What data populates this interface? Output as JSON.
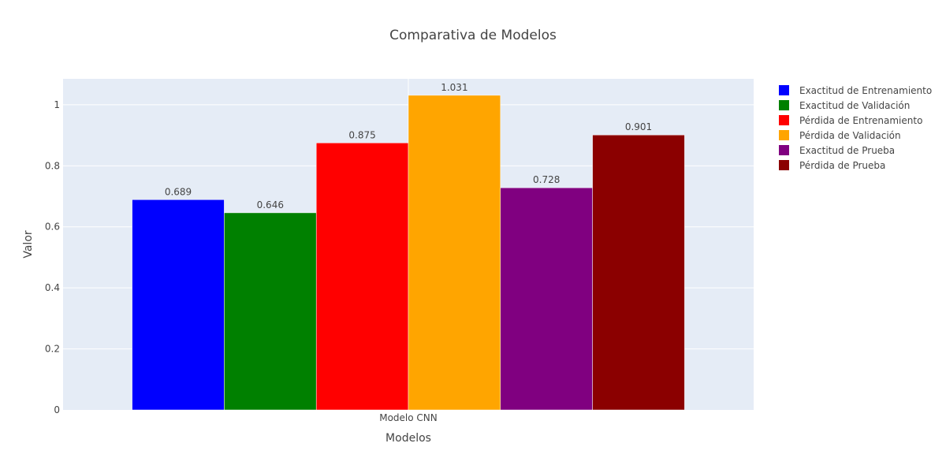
{
  "chart_data": {
    "type": "bar",
    "title": "Comparativa de Modelos",
    "xlabel": "Modelos",
    "ylabel": "Valor",
    "categories": [
      "Modelo CNN"
    ],
    "ylim": [
      0,
      1.085
    ],
    "yticks": [
      0,
      0.2,
      0.4,
      0.6,
      0.8,
      1
    ],
    "ytick_labels": [
      "0",
      "0.2",
      "0.4",
      "0.6",
      "0.8",
      "1"
    ],
    "grid": true,
    "legend_position": "top-right",
    "series": [
      {
        "name": "Exactitud de Entrenamiento",
        "values": [
          0.689
        ],
        "color": "#0000ff",
        "labels": [
          "0.689"
        ]
      },
      {
        "name": "Exactitud de Validación",
        "values": [
          0.646
        ],
        "color": "#008000",
        "labels": [
          "0.646"
        ]
      },
      {
        "name": "Pérdida de Entrenamiento",
        "values": [
          0.875
        ],
        "color": "#ff0000",
        "labels": [
          "0.875"
        ]
      },
      {
        "name": "Pérdida de Validación",
        "values": [
          1.031
        ],
        "color": "#ffa500",
        "labels": [
          "1.031"
        ]
      },
      {
        "name": "Exactitud de Prueba",
        "values": [
          0.728
        ],
        "color": "#800080",
        "labels": [
          "0.728"
        ]
      },
      {
        "name": "Pérdida de Prueba",
        "values": [
          0.901
        ],
        "color": "#8b0000",
        "labels": [
          "0.901"
        ]
      }
    ]
  },
  "theme": {
    "plot_background": "#e5ecf6",
    "grid_color": "#ffffff",
    "text_color": "#444444"
  }
}
